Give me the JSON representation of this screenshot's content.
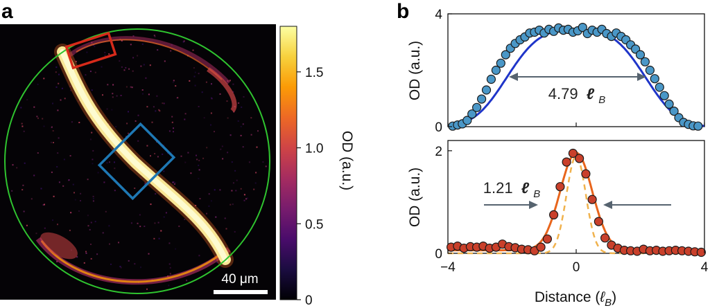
{
  "panel_a": {
    "letter": "a",
    "scale_bar_label": "40 μm",
    "colorbar": {
      "label": "OD (a.u.)",
      "ticks": [
        "0",
        "0.5",
        "1.0",
        "1.5"
      ],
      "range": [
        0,
        1.8
      ],
      "colormap": [
        "#000004",
        "#1b0c41",
        "#4a0c6b",
        "#781c6d",
        "#a52c60",
        "#cf4446",
        "#ed6925",
        "#fb9b06",
        "#f7d13d",
        "#fcffa4"
      ]
    },
    "colors": {
      "boundary_circle": "#2fc42f",
      "box_edge": "#d62a1a",
      "box_center": "#1e78b4"
    }
  },
  "chart_data": [
    {
      "type": "scatter",
      "panel": "b-top",
      "panel_letter": "b",
      "ylabel": "OD (a.u.)",
      "xlim": [
        -4,
        4
      ],
      "ylim": [
        0,
        4
      ],
      "yticks": [
        "0",
        "4"
      ],
      "annotation": {
        "value": "4.79",
        "unit": "ℓ",
        "unit_sub": "B"
      },
      "series": [
        {
          "kind": "points",
          "color": "#4a97c7",
          "x": [
            -3.85,
            -3.7,
            -3.55,
            -3.4,
            -3.25,
            -3.1,
            -2.95,
            -2.8,
            -2.65,
            -2.5,
            -2.35,
            -2.2,
            -2.05,
            -1.9,
            -1.75,
            -1.6,
            -1.45,
            -1.3,
            -1.15,
            -1.0,
            -0.85,
            -0.7,
            -0.55,
            -0.4,
            -0.25,
            -0.1,
            0.05,
            0.2,
            0.35,
            0.5,
            0.65,
            0.8,
            0.95,
            1.1,
            1.25,
            1.4,
            1.55,
            1.7,
            1.85,
            2.0,
            2.15,
            2.3,
            2.45,
            2.6,
            2.75,
            2.9,
            3.05,
            3.2,
            3.35,
            3.5,
            3.65,
            3.8
          ],
          "y": [
            0.02,
            0.06,
            0.1,
            0.22,
            0.45,
            0.68,
            0.98,
            1.3,
            1.68,
            2.0,
            2.25,
            2.55,
            2.78,
            2.95,
            3.08,
            3.18,
            3.32,
            3.35,
            3.42,
            3.32,
            3.45,
            3.38,
            3.5,
            3.42,
            3.45,
            3.35,
            3.4,
            3.52,
            3.3,
            3.42,
            3.35,
            3.45,
            3.3,
            3.2,
            3.32,
            3.2,
            3.08,
            2.9,
            2.75,
            2.55,
            2.3,
            2.0,
            1.7,
            1.4,
            1.1,
            0.8,
            0.55,
            0.32,
            0.15,
            0.08,
            0.03,
            0.02
          ]
        },
        {
          "kind": "fit",
          "color": "#1f35c9"
        }
      ]
    },
    {
      "type": "scatter",
      "panel": "b-bottom",
      "xlabel": "Distance (ℓB)",
      "xlabel_main": "Distance (",
      "xlabel_unit": "ℓ",
      "xlabel_sub": "B",
      "xlabel_close": ")",
      "ylabel": "OD (a.u.)",
      "xlim": [
        -4,
        4
      ],
      "ylim": [
        0,
        2.2
      ],
      "xticks": [
        "−4",
        "0",
        "4"
      ],
      "yticks": [
        "0",
        "2"
      ],
      "annotation": {
        "value": "1.21",
        "unit": "ℓ",
        "unit_sub": "B"
      },
      "series": [
        {
          "kind": "points",
          "color": "#c9402b",
          "x": [
            -3.9,
            -3.7,
            -3.5,
            -3.3,
            -3.1,
            -2.9,
            -2.7,
            -2.5,
            -2.3,
            -2.1,
            -1.9,
            -1.7,
            -1.5,
            -1.3,
            -1.1,
            -0.9,
            -0.7,
            -0.5,
            -0.3,
            -0.1,
            0.1,
            0.3,
            0.5,
            0.7,
            0.9,
            1.1,
            1.3,
            1.5,
            1.7,
            1.9,
            2.1,
            2.3,
            2.5,
            2.7,
            2.9,
            3.1,
            3.3,
            3.5,
            3.7,
            3.9
          ],
          "y": [
            0.12,
            0.14,
            0.1,
            0.13,
            0.12,
            0.14,
            0.1,
            0.12,
            0.18,
            0.13,
            0.11,
            0.08,
            0.07,
            0.05,
            0.12,
            0.28,
            0.75,
            1.3,
            1.78,
            1.95,
            1.85,
            1.55,
            1.05,
            0.62,
            0.3,
            0.16,
            0.1,
            0.06,
            0.05,
            0.04,
            0.08,
            0.05,
            0.06,
            0.04,
            0.05,
            0.06,
            0.05,
            0.04,
            0.03,
            0.02
          ]
        },
        {
          "kind": "fit",
          "color": "#e8651c"
        },
        {
          "kind": "reference",
          "color": "#f0b24d"
        }
      ]
    }
  ]
}
